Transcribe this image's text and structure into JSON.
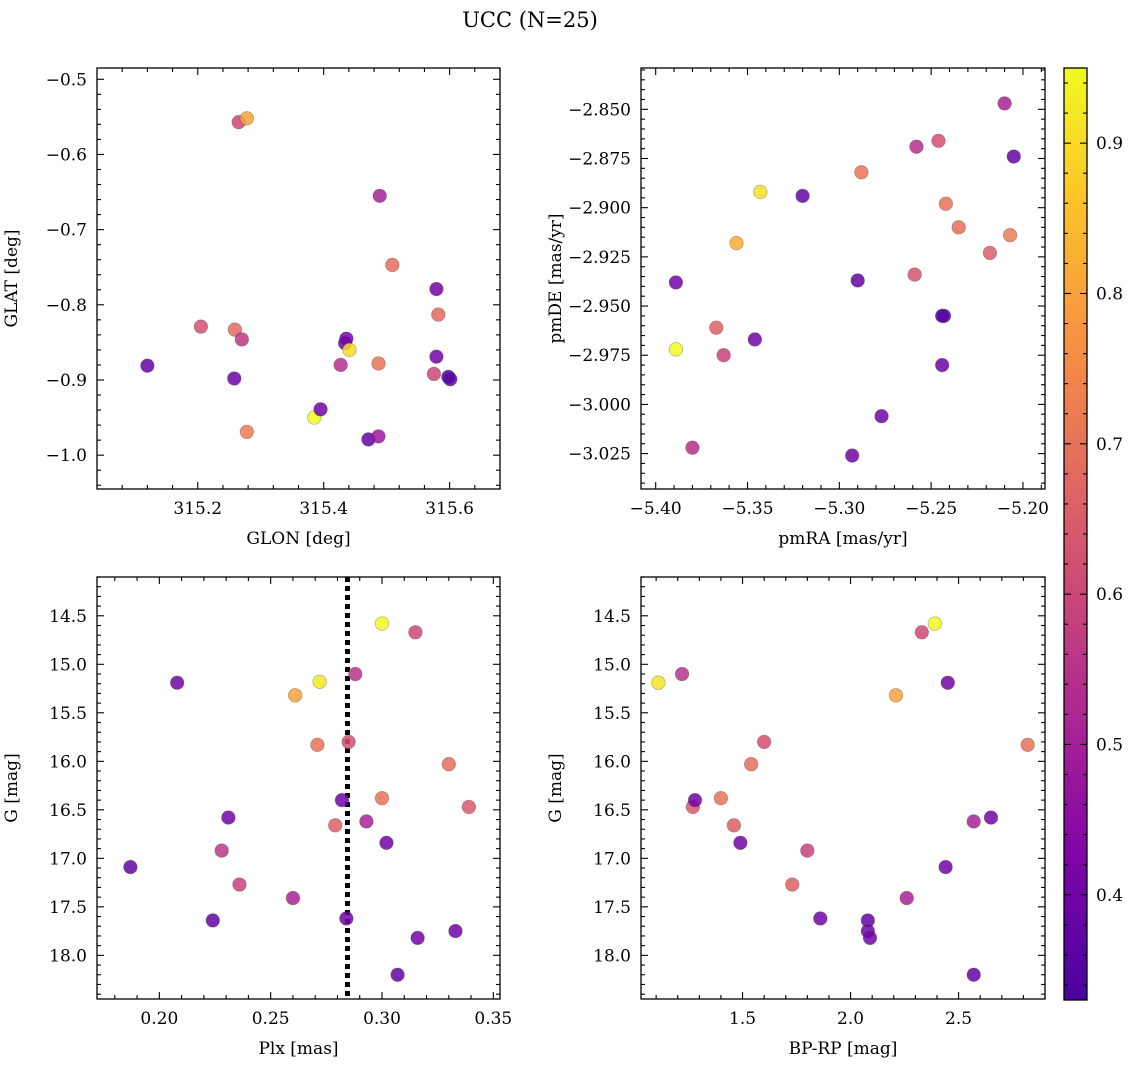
{
  "figure": {
    "title": "UCC (N=25)",
    "colorbar": {
      "cmap": "plasma",
      "vmin": 0.33,
      "vmax": 0.95,
      "ticks": [
        "0.4",
        "0.5",
        "0.6",
        "0.7",
        "0.8",
        "0.9"
      ],
      "tick_values": [
        0.4,
        0.5,
        0.6,
        0.7,
        0.8,
        0.9
      ]
    }
  },
  "chart_data": [
    {
      "type": "scatter",
      "id": "glon-glat",
      "xlabel": "GLON [deg]",
      "ylabel": "GLAT [deg]",
      "xlim": [
        315.04,
        315.68
      ],
      "ylim": [
        -1.045,
        -0.485
      ],
      "y_inverted": false,
      "xticks": [
        "315.2",
        "315.4",
        "315.6"
      ],
      "xtick_values": [
        315.2,
        315.4,
        315.6
      ],
      "yticks": [
        "−0.5",
        "−0.6",
        "−0.7",
        "−0.8",
        "−0.9",
        "−1.0"
      ],
      "ytick_values": [
        -0.5,
        -0.6,
        -0.7,
        -0.8,
        -0.9,
        -1.0
      ],
      "points": [
        {
          "x": 315.12,
          "y": -0.881,
          "c": 0.38
        },
        {
          "x": 315.205,
          "y": -0.829,
          "c": 0.62
        },
        {
          "x": 315.258,
          "y": -0.898,
          "c": 0.39
        },
        {
          "x": 315.259,
          "y": -0.833,
          "c": 0.68
        },
        {
          "x": 315.265,
          "y": -0.557,
          "c": 0.6
        },
        {
          "x": 315.27,
          "y": -0.846,
          "c": 0.56
        },
        {
          "x": 315.278,
          "y": -0.552,
          "c": 0.8
        },
        {
          "x": 315.278,
          "y": -0.969,
          "c": 0.72
        },
        {
          "x": 315.385,
          "y": -0.95,
          "c": 0.95
        },
        {
          "x": 315.395,
          "y": -0.939,
          "c": 0.4
        },
        {
          "x": 315.427,
          "y": -0.88,
          "c": 0.54
        },
        {
          "x": 315.434,
          "y": -0.851,
          "c": 0.4
        },
        {
          "x": 315.436,
          "y": -0.845,
          "c": 0.41
        },
        {
          "x": 315.441,
          "y": -0.86,
          "c": 0.9
        },
        {
          "x": 315.471,
          "y": -0.979,
          "c": 0.38
        },
        {
          "x": 315.487,
          "y": -0.975,
          "c": 0.48
        },
        {
          "x": 315.487,
          "y": -0.878,
          "c": 0.7
        },
        {
          "x": 315.489,
          "y": -0.655,
          "c": 0.51
        },
        {
          "x": 315.509,
          "y": -0.747,
          "c": 0.69
        },
        {
          "x": 315.575,
          "y": -0.892,
          "c": 0.6
        },
        {
          "x": 315.579,
          "y": -0.869,
          "c": 0.4
        },
        {
          "x": 315.579,
          "y": -0.779,
          "c": 0.41
        },
        {
          "x": 315.582,
          "y": -0.813,
          "c": 0.68
        },
        {
          "x": 315.598,
          "y": -0.896,
          "c": 0.34
        },
        {
          "x": 315.601,
          "y": -0.899,
          "c": 0.36
        }
      ]
    },
    {
      "type": "scatter",
      "id": "pmra-pmde",
      "xlabel": "pmRA [mas/yr]",
      "ylabel": "pmDE [mas/yr]",
      "xlim": [
        -5.408,
        -5.188
      ],
      "ylim": [
        -3.043,
        -2.829
      ],
      "y_inverted": false,
      "xticks": [
        "−5.40",
        "−5.35",
        "−5.30",
        "−5.25",
        "−5.20"
      ],
      "xtick_values": [
        -5.4,
        -5.35,
        -5.3,
        -5.25,
        -5.2
      ],
      "yticks": [
        "−2.850",
        "−2.875",
        "−2.900",
        "−2.925",
        "−2.950",
        "−2.975",
        "−3.000",
        "−3.025"
      ],
      "ytick_values": [
        -2.85,
        -2.875,
        -2.9,
        -2.925,
        -2.95,
        -2.975,
        -3.0,
        -3.025
      ],
      "points": [
        {
          "x": -5.389,
          "y": -2.938,
          "c": 0.4
        },
        {
          "x": -5.389,
          "y": -2.972,
          "c": 0.95
        },
        {
          "x": -5.38,
          "y": -3.022,
          "c": 0.54
        },
        {
          "x": -5.367,
          "y": -2.961,
          "c": 0.66
        },
        {
          "x": -5.363,
          "y": -2.975,
          "c": 0.59
        },
        {
          "x": -5.356,
          "y": -2.918,
          "c": 0.82
        },
        {
          "x": -5.346,
          "y": -2.967,
          "c": 0.4
        },
        {
          "x": -5.343,
          "y": -2.892,
          "c": 0.91
        },
        {
          "x": -5.32,
          "y": -2.894,
          "c": 0.38
        },
        {
          "x": -5.293,
          "y": -3.026,
          "c": 0.4
        },
        {
          "x": -5.29,
          "y": -2.937,
          "c": 0.38
        },
        {
          "x": -5.288,
          "y": -2.882,
          "c": 0.71
        },
        {
          "x": -5.277,
          "y": -3.006,
          "c": 0.4
        },
        {
          "x": -5.259,
          "y": -2.934,
          "c": 0.63
        },
        {
          "x": -5.258,
          "y": -2.869,
          "c": 0.54
        },
        {
          "x": -5.246,
          "y": -2.866,
          "c": 0.62
        },
        {
          "x": -5.244,
          "y": -2.98,
          "c": 0.39
        },
        {
          "x": -5.244,
          "y": -2.955,
          "c": 0.34
        },
        {
          "x": -5.243,
          "y": -2.955,
          "c": 0.36
        },
        {
          "x": -5.242,
          "y": -2.898,
          "c": 0.7
        },
        {
          "x": -5.235,
          "y": -2.91,
          "c": 0.69
        },
        {
          "x": -5.218,
          "y": -2.923,
          "c": 0.65
        },
        {
          "x": -5.21,
          "y": -2.847,
          "c": 0.51
        },
        {
          "x": -5.207,
          "y": -2.914,
          "c": 0.72
        },
        {
          "x": -5.205,
          "y": -2.874,
          "c": 0.38
        }
      ]
    },
    {
      "type": "scatter",
      "id": "plx-g",
      "xlabel": "Plx [mas]",
      "ylabel": "G [mag]",
      "xlim": [
        0.172,
        0.353
      ],
      "ylim": [
        14.1,
        18.45
      ],
      "y_inverted": true,
      "xticks": [
        "0.20",
        "0.25",
        "0.30",
        "0.35"
      ],
      "xtick_values": [
        0.2,
        0.25,
        0.3,
        0.35
      ],
      "yticks": [
        "14.5",
        "15.0",
        "15.5",
        "16.0",
        "16.5",
        "17.0",
        "17.5",
        "18.0"
      ],
      "ytick_values": [
        14.5,
        15.0,
        15.5,
        16.0,
        16.5,
        17.0,
        17.5,
        18.0
      ],
      "vline": {
        "x": 0.2845,
        "style": "dotted"
      },
      "points": [
        {
          "x": 0.187,
          "y": 17.09,
          "c": 0.38
        },
        {
          "x": 0.208,
          "y": 15.19,
          "c": 0.4
        },
        {
          "x": 0.224,
          "y": 17.64,
          "c": 0.38
        },
        {
          "x": 0.228,
          "y": 16.92,
          "c": 0.56
        },
        {
          "x": 0.231,
          "y": 16.58,
          "c": 0.4
        },
        {
          "x": 0.236,
          "y": 17.27,
          "c": 0.59
        },
        {
          "x": 0.26,
          "y": 17.41,
          "c": 0.51
        },
        {
          "x": 0.261,
          "y": 15.32,
          "c": 0.8
        },
        {
          "x": 0.271,
          "y": 15.83,
          "c": 0.7
        },
        {
          "x": 0.272,
          "y": 15.18,
          "c": 0.92
        },
        {
          "x": 0.279,
          "y": 16.66,
          "c": 0.66
        },
        {
          "x": 0.282,
          "y": 16.4,
          "c": 0.4
        },
        {
          "x": 0.284,
          "y": 17.62,
          "c": 0.4
        },
        {
          "x": 0.285,
          "y": 15.8,
          "c": 0.62
        },
        {
          "x": 0.288,
          "y": 15.1,
          "c": 0.55
        },
        {
          "x": 0.293,
          "y": 16.62,
          "c": 0.51
        },
        {
          "x": 0.3,
          "y": 14.58,
          "c": 0.95
        },
        {
          "x": 0.3,
          "y": 16.38,
          "c": 0.7
        },
        {
          "x": 0.302,
          "y": 16.84,
          "c": 0.4
        },
        {
          "x": 0.307,
          "y": 18.2,
          "c": 0.38
        },
        {
          "x": 0.315,
          "y": 14.67,
          "c": 0.6
        },
        {
          "x": 0.316,
          "y": 17.82,
          "c": 0.4
        },
        {
          "x": 0.33,
          "y": 16.03,
          "c": 0.69
        },
        {
          "x": 0.333,
          "y": 17.75,
          "c": 0.4
        },
        {
          "x": 0.339,
          "y": 16.47,
          "c": 0.64
        }
      ]
    },
    {
      "type": "scatter",
      "id": "bprp-g",
      "xlabel": "BP-RP [mag]",
      "ylabel": "G [mag]",
      "xlim": [
        1.03,
        2.9
      ],
      "ylim": [
        14.1,
        18.45
      ],
      "y_inverted": true,
      "xticks": [
        "1.5",
        "2.0",
        "2.5"
      ],
      "xtick_values": [
        1.5,
        2.0,
        2.5
      ],
      "yticks": [
        "14.5",
        "15.0",
        "15.5",
        "16.0",
        "16.5",
        "17.0",
        "17.5",
        "18.0"
      ],
      "ytick_values": [
        14.5,
        15.0,
        15.5,
        16.0,
        16.5,
        17.0,
        17.5,
        18.0
      ],
      "points": [
        {
          "x": 1.11,
          "y": 15.19,
          "c": 0.92
        },
        {
          "x": 1.22,
          "y": 15.1,
          "c": 0.55
        },
        {
          "x": 1.27,
          "y": 16.47,
          "c": 0.64
        },
        {
          "x": 1.28,
          "y": 16.4,
          "c": 0.4
        },
        {
          "x": 1.4,
          "y": 16.38,
          "c": 0.7
        },
        {
          "x": 1.46,
          "y": 16.66,
          "c": 0.66
        },
        {
          "x": 1.49,
          "y": 16.84,
          "c": 0.4
        },
        {
          "x": 1.54,
          "y": 16.03,
          "c": 0.69
        },
        {
          "x": 1.6,
          "y": 15.8,
          "c": 0.62
        },
        {
          "x": 1.73,
          "y": 17.27,
          "c": 0.66
        },
        {
          "x": 1.8,
          "y": 16.92,
          "c": 0.59
        },
        {
          "x": 1.86,
          "y": 17.62,
          "c": 0.4
        },
        {
          "x": 2.08,
          "y": 17.64,
          "c": 0.38
        },
        {
          "x": 2.08,
          "y": 17.75,
          "c": 0.4
        },
        {
          "x": 2.09,
          "y": 17.82,
          "c": 0.4
        },
        {
          "x": 2.21,
          "y": 15.32,
          "c": 0.8
        },
        {
          "x": 2.26,
          "y": 17.41,
          "c": 0.51
        },
        {
          "x": 2.33,
          "y": 14.67,
          "c": 0.6
        },
        {
          "x": 2.39,
          "y": 14.58,
          "c": 0.95
        },
        {
          "x": 2.44,
          "y": 17.09,
          "c": 0.4
        },
        {
          "x": 2.45,
          "y": 15.19,
          "c": 0.4
        },
        {
          "x": 2.57,
          "y": 16.62,
          "c": 0.51
        },
        {
          "x": 2.57,
          "y": 18.2,
          "c": 0.38
        },
        {
          "x": 2.65,
          "y": 16.58,
          "c": 0.4
        },
        {
          "x": 2.82,
          "y": 15.83,
          "c": 0.7
        }
      ]
    }
  ]
}
